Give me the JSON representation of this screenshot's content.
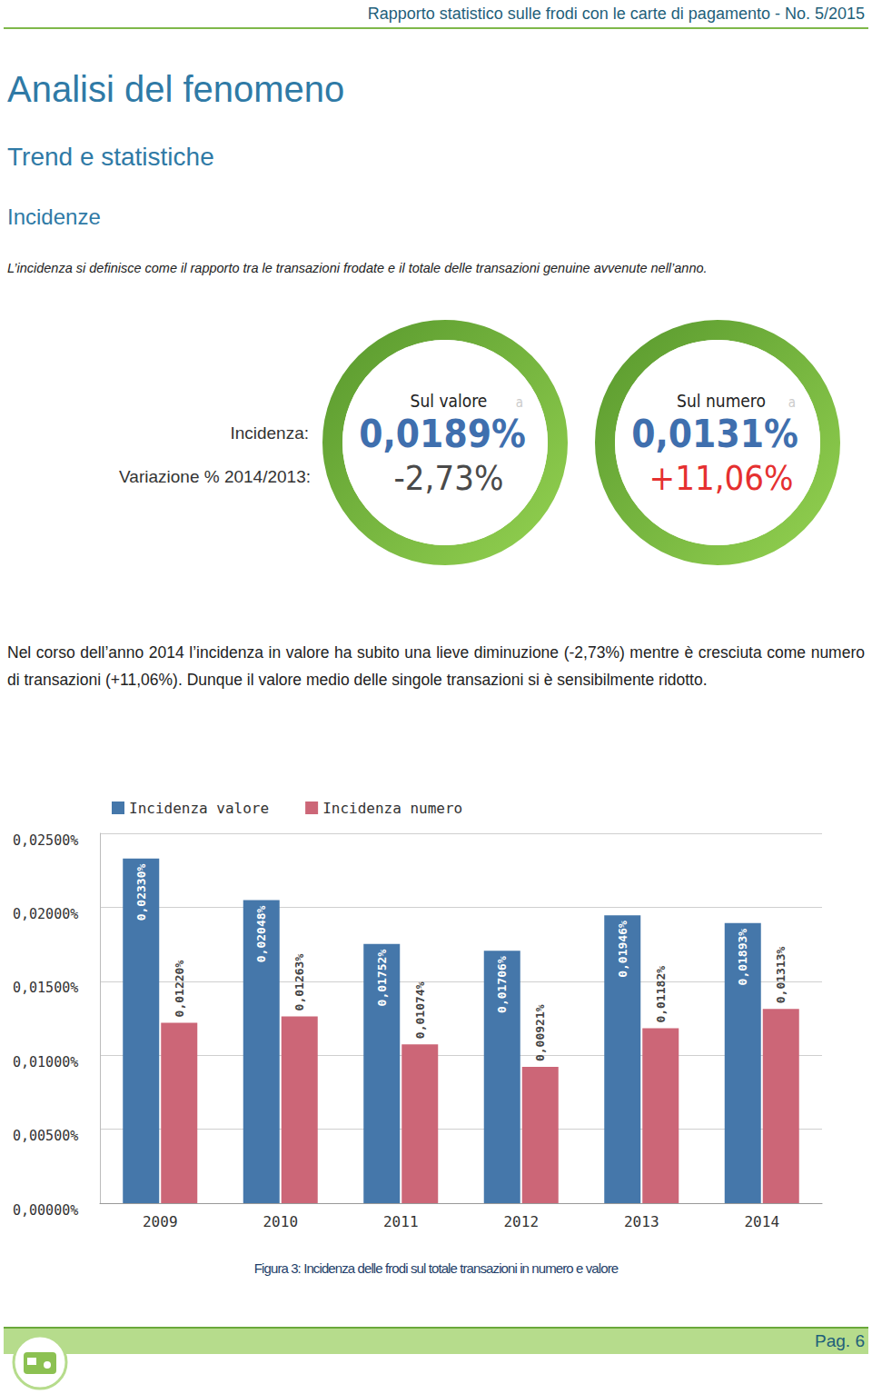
{
  "header": {
    "title": "Rapporto statistico sulle frodi con le carte di pagamento - No. 5/2015"
  },
  "headings": [
    "Analisi del fenomeno",
    "Trend e statistiche",
    "Incidenze"
  ],
  "definition": "L’incidenza si definisce come il rapporto tra le transazioni frodate e il totale delle transazioni genuine avvenute nell’anno.",
  "gauges": {
    "row_labels": [
      "Incidenza:",
      "Variazione % 2014/2013:"
    ],
    "items": [
      {
        "title": "Sul valore",
        "badge": "a",
        "value": "0,0189%",
        "change": "-2,73%",
        "value_color": "#3f6fae",
        "change_color": "#4a4a4a"
      },
      {
        "title": "Sul numero",
        "badge": "a",
        "value": "0,0131%",
        "change": "+11,06%",
        "value_color": "#3f6fae",
        "change_color": "#e53030"
      }
    ]
  },
  "paragraph": "Nel corso dell’anno 2014 l’incidenza in valore ha subito una lieve diminuzione (-2,73%) mentre è cresciuta come numero di transazioni (+11,06%). Dunque il valore medio delle singole transazioni si è sensibilmente ridotto.",
  "chart_data": {
    "type": "bar",
    "categories": [
      "2009",
      "2010",
      "2011",
      "2012",
      "2013",
      "2014"
    ],
    "series": [
      {
        "name": "Incidenza valore",
        "color": "#4577aa",
        "values": [
          0.0233,
          0.02048,
          0.01752,
          0.01706,
          0.01946,
          0.01893
        ],
        "value_labels": [
          "0,02330%",
          "0,02048%",
          "0,01752%",
          "0,01706%",
          "0,01946%",
          "0,01893%"
        ]
      },
      {
        "name": "Incidenza numero",
        "color": "#cc6677",
        "values": [
          0.0122,
          0.01263,
          0.01074,
          0.00921,
          0.01182,
          0.01313
        ],
        "value_labels": [
          "0,01220%",
          "0,01263%",
          "0,01074%",
          "0,00921%",
          "0,01182%",
          "0,01313%"
        ]
      }
    ],
    "ylim": [
      0,
      0.025
    ],
    "yticks": [
      {
        "value": 0,
        "label": "0,00000%"
      },
      {
        "value": 0.005,
        "label": "0,00500%"
      },
      {
        "value": 0.01,
        "label": "0,01000%"
      },
      {
        "value": 0.015,
        "label": "0,01500%"
      },
      {
        "value": 0.02,
        "label": "0,02000%"
      },
      {
        "value": 0.025,
        "label": "0,02500%"
      }
    ],
    "grid": true,
    "legend": "top",
    "data_labels": true
  },
  "caption": "Figura 3: Incidenza delle frodi sul totale transazioni in numero e valore",
  "footer": {
    "page": "Pag. 6"
  }
}
